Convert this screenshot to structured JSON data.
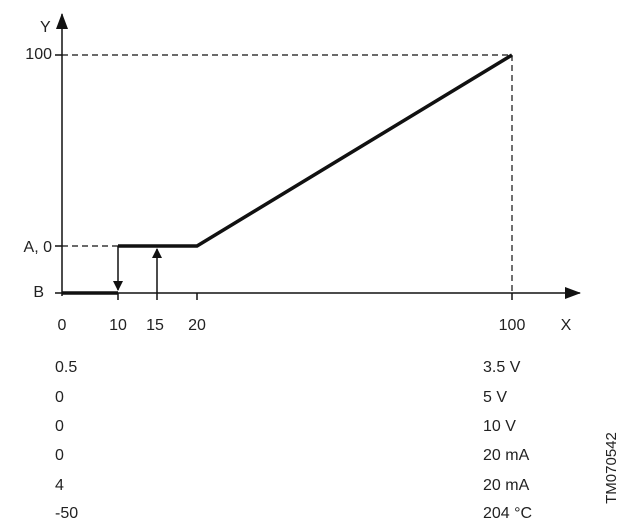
{
  "diagram": {
    "y_axis": {
      "name": "Y",
      "labels": [
        "100",
        "A, 0",
        "B"
      ]
    },
    "x_axis": {
      "name": "X",
      "labels": [
        "0",
        "10",
        "15",
        "20",
        "100"
      ]
    },
    "table": {
      "rows": [
        [
          "0.5",
          "3.5 V"
        ],
        [
          "0",
          "5 V"
        ],
        [
          "0",
          "10 V"
        ],
        [
          "0",
          "20 mA"
        ],
        [
          "4",
          "20 mA"
        ],
        [
          "-50",
          "204 °C"
        ]
      ]
    },
    "code": "TM070542"
  }
}
